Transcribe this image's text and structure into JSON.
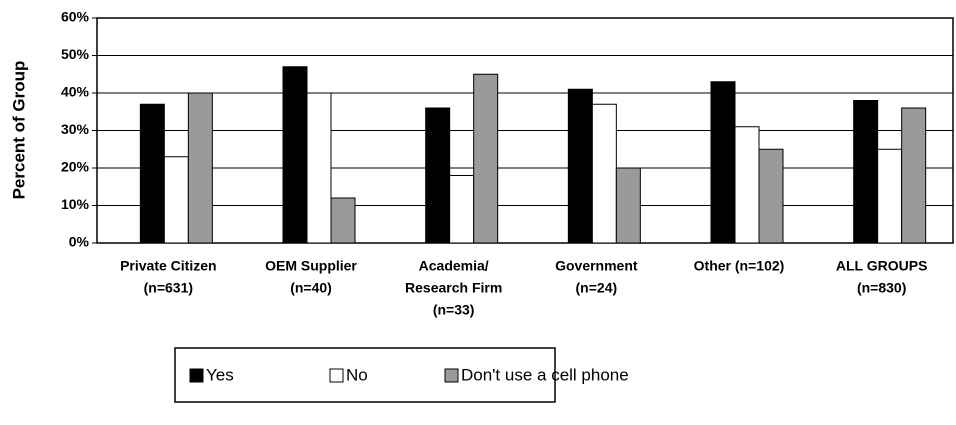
{
  "chart_data": {
    "type": "bar",
    "y_label": "Percent of Group",
    "categories": [
      [
        "Private Citizen",
        "(n=631)"
      ],
      [
        "OEM Supplier",
        "(n=40)"
      ],
      [
        "Academia/",
        "Research Firm",
        "(n=33)"
      ],
      [
        "Government",
        "(n=24)"
      ],
      [
        "Other (n=102)"
      ],
      [
        "ALL GROUPS",
        "(n=830)"
      ]
    ],
    "series": [
      {
        "name": "Yes",
        "color": "#000000",
        "values": [
          37,
          47,
          36,
          41,
          43,
          38
        ]
      },
      {
        "name": "No",
        "color": "#ffffff",
        "values": [
          23,
          40,
          18,
          37,
          31,
          25
        ]
      },
      {
        "name": "Don't use a cell phone",
        "color": "#9a9a9a",
        "values": [
          40,
          12,
          45,
          20,
          25,
          36
        ]
      }
    ],
    "ylim": [
      0,
      60
    ],
    "yticks": [
      {
        "value": 0,
        "label": "0%"
      },
      {
        "value": 10,
        "label": "10%"
      },
      {
        "value": 20,
        "label": "20%"
      },
      {
        "value": 30,
        "label": "30%"
      },
      {
        "value": 40,
        "label": "40%"
      },
      {
        "value": 50,
        "label": "50%"
      },
      {
        "value": 60,
        "label": "60%"
      }
    ],
    "grid": true,
    "legend": "bottom"
  }
}
